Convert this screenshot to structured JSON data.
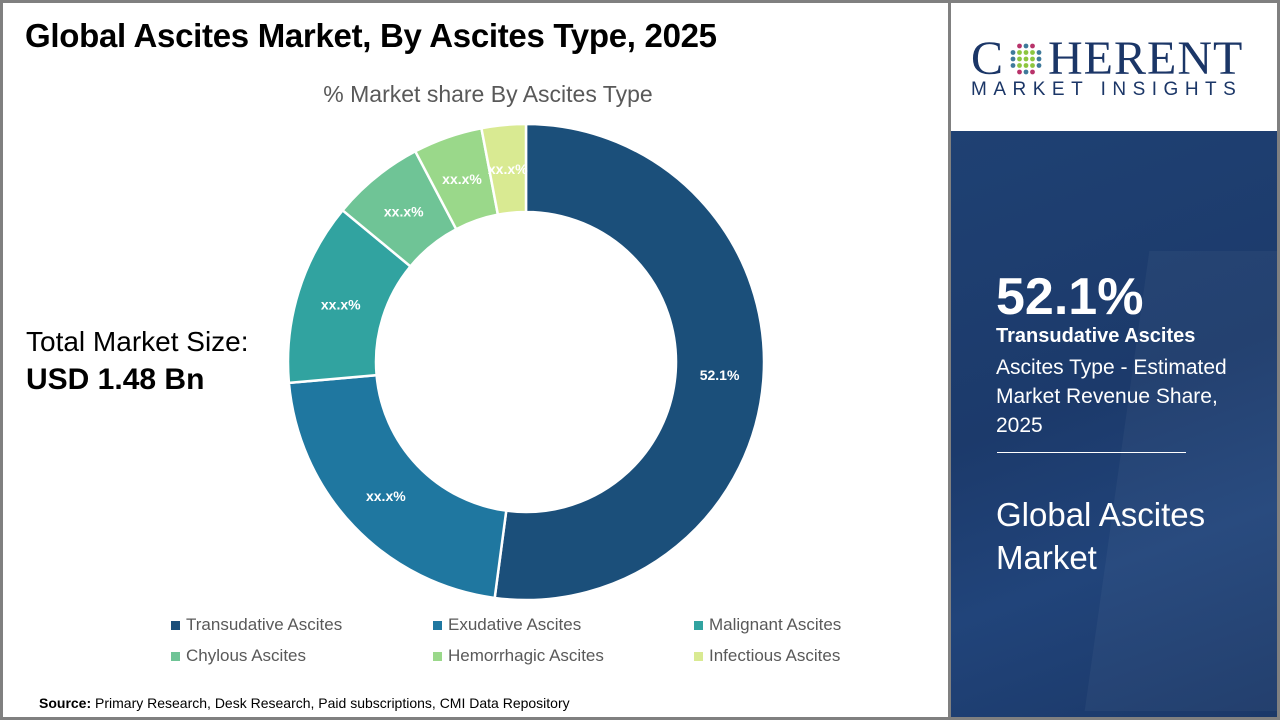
{
  "header": {
    "title": "Global Ascites Market, By Ascites Type, 2025"
  },
  "total_market": {
    "label": "Total Market Size:",
    "value": "USD 1.48 Bn"
  },
  "source": {
    "label": "Source:",
    "text": "Primary Research, Desk Research, Paid subscriptions, CMI Data Repository"
  },
  "brand": {
    "word_first": "C",
    "word_rest": "HERENT",
    "tagline": "MARKET INSIGHTS",
    "logo_lettering": "COHERENT MARKET INSIGHTS"
  },
  "highlight": {
    "value": "52.1%",
    "segment": "Transudative Ascites",
    "description": "Ascites Type - Estimated Market Revenue Share, 2025",
    "market_name": "Global Ascites Market"
  },
  "chart_data": {
    "type": "pie",
    "subtype": "donut",
    "title": "% Market share By Ascites Type",
    "categories": [
      "Transudative Ascites",
      "Exudative Ascites",
      "Malignant Ascites",
      "Chylous Ascites",
      "Hemorrhagic Ascites",
      "Infectious Ascites"
    ],
    "values": [
      52.1,
      21.5,
      12.4,
      6.3,
      4.7,
      3.0
    ],
    "values_note": "Only 52.1 is printed on the chart; the other five values are visual estimates read from the slice angles and are drawn but not shown as text.",
    "data_labels": [
      "52.1%",
      "xx.x%",
      "xx.x%",
      "xx.x%",
      "xx.x%",
      "xx.x%"
    ],
    "colors": [
      "#1b4f7a",
      "#1f77a0",
      "#31a3a0",
      "#6fc496",
      "#9ad88a",
      "#d9ea92"
    ],
    "legend_position": "bottom",
    "start_angle_deg": 0,
    "direction": "clockwise"
  },
  "colors": {
    "panel_bg": "#1f4173",
    "brand_text": "#1b3667"
  }
}
